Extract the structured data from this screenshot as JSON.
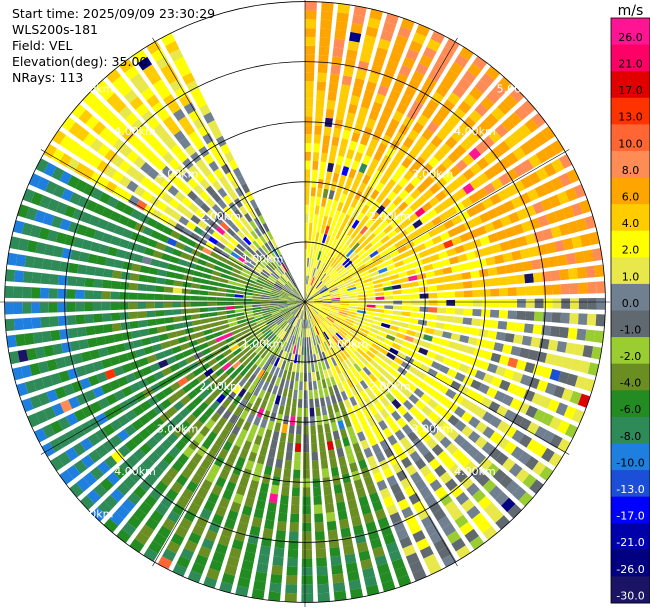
{
  "header": {
    "start_time": "Start time: 2025/09/09 23:30:29",
    "station": "WLS200s-181",
    "field": "Field: VEL",
    "elevation": "Elevation(deg): 35.00",
    "nrays": "NRays: 113"
  },
  "chart_data": {
    "type": "heatmap",
    "projection": "polar-ppi",
    "field": "VEL",
    "elevation_deg": 35.0,
    "nrays": 113,
    "range_unit": "km",
    "range_rings_km": [
      1.0,
      2.0,
      3.0,
      4.0,
      5.0
    ],
    "max_range_km": 5.0,
    "missing_sector_deg": [
      -25,
      0
    ],
    "ring_labels": [
      {
        "text": "1.00km",
        "ring": 1,
        "azimuth_deg": 315
      },
      {
        "text": "1.00km",
        "ring": 1,
        "azimuth_deg": 135
      },
      {
        "text": "1.00km",
        "ring": 1,
        "azimuth_deg": 225
      },
      {
        "text": "2.00km",
        "ring": 2,
        "azimuth_deg": 315
      },
      {
        "text": "2.00km",
        "ring": 2,
        "azimuth_deg": 45
      },
      {
        "text": "2.00km",
        "ring": 2,
        "azimuth_deg": 135
      },
      {
        "text": "2.00km",
        "ring": 2,
        "azimuth_deg": 225
      },
      {
        "text": "3.00km",
        "ring": 3,
        "azimuth_deg": 315
      },
      {
        "text": "3.00km",
        "ring": 3,
        "azimuth_deg": 45
      },
      {
        "text": "3.00km",
        "ring": 3,
        "azimuth_deg": 135
      },
      {
        "text": "3.00km",
        "ring": 3,
        "azimuth_deg": 225
      },
      {
        "text": "4.00km",
        "ring": 4,
        "azimuth_deg": 315
      },
      {
        "text": "4.00km",
        "ring": 4,
        "azimuth_deg": 45
      },
      {
        "text": "4.00km",
        "ring": 4,
        "azimuth_deg": 135
      },
      {
        "text": "4.00km",
        "ring": 4,
        "azimuth_deg": 225
      },
      {
        "text": "5.00km",
        "ring": 5,
        "azimuth_deg": 315
      },
      {
        "text": "5.00km",
        "ring": 5,
        "azimuth_deg": 45
      },
      {
        "text": "5.00km",
        "ring": 5,
        "azimuth_deg": 225
      }
    ],
    "colorbar": {
      "unit": "m/s",
      "ticks": [
        "26.0",
        "21.0",
        "17.0",
        "13.0",
        "10.0",
        "8.0",
        "6.0",
        "4.0",
        "2.0",
        "1.0",
        "0.0",
        "-1.0",
        "-2.0",
        "-4.0",
        "-6.0",
        "-8.0",
        "-10.0",
        "-13.0",
        "-17.0",
        "-21.0",
        "-26.0",
        "-30.0"
      ],
      "colors": [
        "#ff1493",
        "#ff0066",
        "#e00000",
        "#ff3300",
        "#ff6633",
        "#ff8c55",
        "#ffa500",
        "#ffcc00",
        "#ffff00",
        "#e8e84a",
        "#708090",
        "#606870",
        "#9acd32",
        "#6b8e23",
        "#228b22",
        "#2e8b57",
        "#1e7fdf",
        "#1c4fd8",
        "#0000ff",
        "#0000aa",
        "#000080",
        "#1b1464"
      ]
    },
    "dominant_pattern": [
      {
        "azimuth_deg": [
          0,
          90
        ],
        "near_km_value": 2.0,
        "far_km_value": 8.0
      },
      {
        "azimuth_deg": [
          90,
          160
        ],
        "near_km_value": 4.0,
        "far_km_value": 0.0
      },
      {
        "azimuth_deg": [
          160,
          220
        ],
        "near_km_value": 1.0,
        "far_km_value": -6.0
      },
      {
        "azimuth_deg": [
          220,
          300
        ],
        "near_km_value": -2.0,
        "far_km_value": -8.0
      },
      {
        "azimuth_deg": [
          300,
          335
        ],
        "near_km_value": -1.0,
        "far_km_value": 4.0
      }
    ]
  }
}
